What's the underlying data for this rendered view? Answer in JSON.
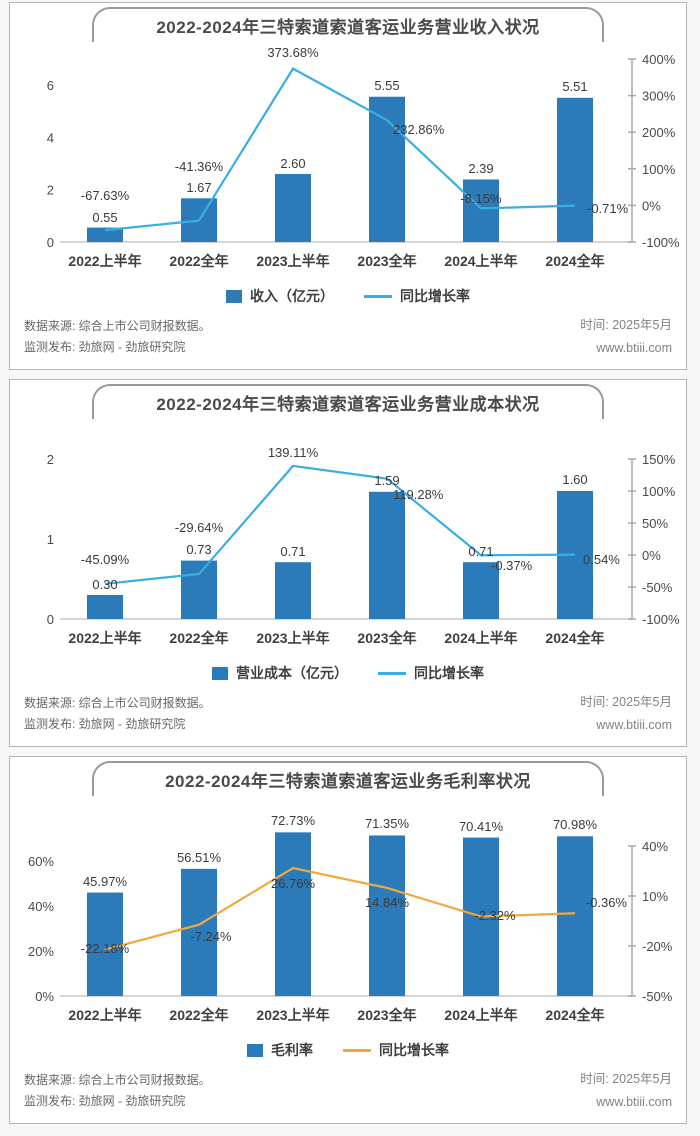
{
  "footer": {
    "source": "数据来源: 综合上市公司财报数据。",
    "publisher": "监测发布: 劲旅网 - 劲旅研究院",
    "time": "时间:  2025年5月",
    "site": "www.btiii.com"
  },
  "colors": {
    "bar_blue": "#2b7ab9",
    "line_cyan": "#38aee3",
    "line_orange": "#f2a83c",
    "orange_label": "#f59e2f",
    "axis_line": "#a8a8a8",
    "baseline": "#c8c8c8"
  },
  "chart_data": [
    {
      "type": "combo-bar-line",
      "title": "2022-2024年三特索道索道客运业务营业收入状况",
      "categories": [
        "2022上半年",
        "2022全年",
        "2023上半年",
        "2023全年",
        "2024上半年",
        "2024全年"
      ],
      "series": [
        {
          "name": "收入（亿元）",
          "type": "bar",
          "axis": "left",
          "color": "#2b7ab9",
          "values": [
            0.55,
            1.67,
            2.6,
            5.55,
            2.39,
            5.51
          ],
          "labels": [
            "0.55",
            "1.67",
            "2.60",
            "5.55",
            "2.39",
            "5.51"
          ]
        },
        {
          "name": "同比增长率",
          "type": "line",
          "axis": "right",
          "color": "#38aee3",
          "values": [
            -67.63,
            -41.36,
            373.68,
            232.86,
            -8.15,
            -0.71
          ],
          "labels": [
            "-67.63%",
            "-41.36%",
            "373.68%",
            "232.86%",
            "-8.15%",
            "-0.71%"
          ]
        }
      ],
      "left_axis": {
        "min": 0,
        "max": 6,
        "ticks": [
          0,
          2,
          4,
          6
        ],
        "labels": [
          "0",
          "2",
          "4",
          "6"
        ]
      },
      "right_axis": {
        "min": -100,
        "max": 400,
        "ticks": [
          -100,
          0,
          100,
          200,
          300,
          400
        ],
        "labels": [
          "-100%",
          "0%",
          "100%",
          "200%",
          "300%",
          "400%"
        ]
      },
      "grid": false,
      "legend_position": "bottom"
    },
    {
      "type": "combo-bar-line",
      "title": "2022-2024年三特索道索道客运业务营业成本状况",
      "categories": [
        "2022上半年",
        "2022全年",
        "2023上半年",
        "2023全年",
        "2024上半年",
        "2024全年"
      ],
      "series": [
        {
          "name": "营业成本（亿元）",
          "type": "bar",
          "axis": "left",
          "color": "#2b7ab9",
          "values": [
            0.3,
            0.73,
            0.71,
            1.59,
            0.71,
            1.6
          ],
          "labels": [
            "0.30",
            "0.73",
            "0.71",
            "1.59",
            "0.71",
            "1.60"
          ]
        },
        {
          "name": "同比增长率",
          "type": "line",
          "axis": "right",
          "color": "#38aee3",
          "values": [
            -45.09,
            -29.64,
            139.11,
            119.28,
            -0.37,
            0.54
          ],
          "labels": [
            "-45.09%",
            "-29.64%",
            "139.11%",
            "119.28%",
            "-0.37%",
            "0.54%"
          ]
        }
      ],
      "left_axis": {
        "min": 0,
        "max": 2,
        "ticks": [
          0,
          1,
          2
        ],
        "labels": [
          "0",
          "1",
          "2"
        ]
      },
      "right_axis": {
        "min": -100,
        "max": 150,
        "ticks": [
          -100,
          -50,
          0,
          50,
          100,
          150
        ],
        "labels": [
          "-100%",
          "-50%",
          "0%",
          "50%",
          "100%",
          "150%"
        ]
      },
      "grid": false,
      "legend_position": "bottom"
    },
    {
      "type": "combo-bar-line",
      "title": "2022-2024年三特索道索道客运业务毛利率状况",
      "categories": [
        "2022上半年",
        "2022全年",
        "2023上半年",
        "2023全年",
        "2024上半年",
        "2024全年"
      ],
      "series": [
        {
          "name": "毛利率",
          "type": "bar",
          "axis": "left",
          "color": "#2b7ab9",
          "values": [
            45.97,
            56.51,
            72.73,
            71.35,
            70.41,
            70.98
          ],
          "labels": [
            "45.97%",
            "56.51%",
            "72.73%",
            "71.35%",
            "70.41%",
            "70.98%"
          ]
        },
        {
          "name": "同比增长率",
          "type": "line",
          "axis": "right",
          "color": "#f2a83c",
          "values": [
            -22.18,
            -7.24,
            26.76,
            14.84,
            -2.32,
            -0.36
          ],
          "labels": [
            "-22.18%",
            "-7.24%",
            "26.76%",
            "14.84%",
            "-2.32%",
            "-0.36%"
          ]
        }
      ],
      "left_axis": {
        "min": 0,
        "max": 60,
        "ticks": [
          0,
          20,
          40,
          60
        ],
        "labels": [
          "0%",
          "20%",
          "40%",
          "60%"
        ]
      },
      "right_axis": {
        "min": -50,
        "max": 40,
        "ticks": [
          -50,
          -20,
          10,
          40
        ],
        "labels": [
          "-50%",
          "-20%",
          "10%",
          "40%"
        ]
      },
      "grid": false,
      "legend_position": "bottom"
    }
  ]
}
